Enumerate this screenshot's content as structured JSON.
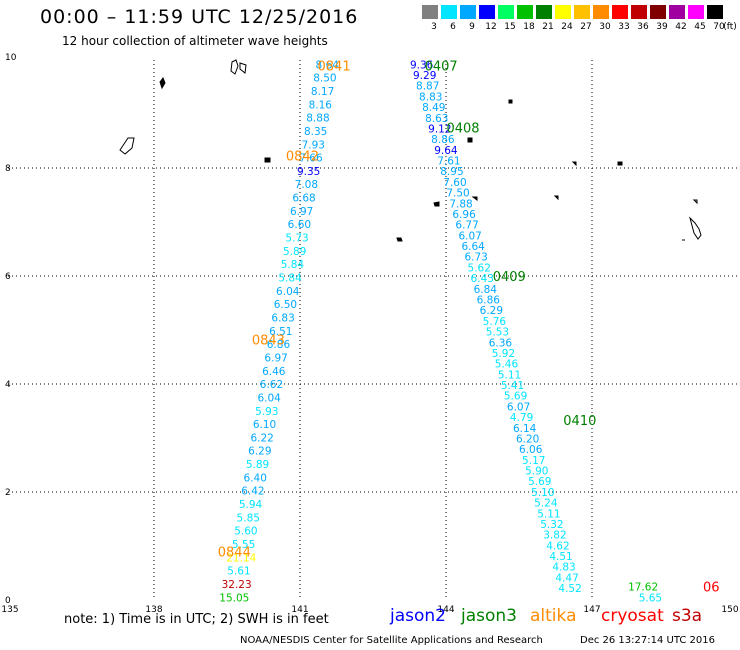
{
  "header": {
    "title": "00:00 – 11:59 UTC 12/25/2016",
    "subtitle": "12 hour collection of altimeter wave heights"
  },
  "scale": {
    "unit": "(ft)",
    "entries": [
      {
        "label": "3",
        "color": "#808080"
      },
      {
        "label": "6",
        "color": "#00e5ff"
      },
      {
        "label": "9",
        "color": "#00a8ff"
      },
      {
        "label": "12",
        "color": "#0000ff"
      },
      {
        "label": "15",
        "color": "#00ff60"
      },
      {
        "label": "18",
        "color": "#00c000"
      },
      {
        "label": "21",
        "color": "#008000"
      },
      {
        "label": "24",
        "color": "#ffff00"
      },
      {
        "label": "27",
        "color": "#ffc000"
      },
      {
        "label": "30",
        "color": "#ff8c00"
      },
      {
        "label": "33",
        "color": "#ff0000"
      },
      {
        "label": "36",
        "color": "#c00000"
      },
      {
        "label": "39",
        "color": "#800000"
      },
      {
        "label": "42",
        "color": "#a000a0"
      },
      {
        "label": "45",
        "color": "#ff00ff"
      },
      {
        "label": "70",
        "color": "#000000"
      }
    ]
  },
  "map": {
    "lon_range": [
      135,
      150
    ],
    "lat_range": [
      0,
      10
    ],
    "grid": true,
    "x_ticks": [
      "135",
      "138",
      "141",
      "144",
      "147",
      "150"
    ],
    "y_ticks": [
      "0",
      "2",
      "4",
      "6",
      "8",
      "10"
    ]
  },
  "passes": [
    {
      "time": "0841",
      "color": "#ff8c00",
      "lon": 141.7,
      "lat": 9.9
    },
    {
      "time": "0842",
      "color": "#ff8c00",
      "lon": 141.05,
      "lat": 8.23
    },
    {
      "time": "0843",
      "color": "#ff8c00",
      "lon": 140.35,
      "lat": 4.82
    },
    {
      "time": "0844",
      "color": "#ff8c00",
      "lon": 139.65,
      "lat": 0.9
    },
    {
      "time": "0407",
      "color": "#008000",
      "lon": 143.9,
      "lat": 9.9
    },
    {
      "time": "0408",
      "color": "#008000",
      "lon": 144.35,
      "lat": 8.75
    },
    {
      "time": "0409",
      "color": "#008000",
      "lon": 145.3,
      "lat": 6.0
    },
    {
      "time": "0410",
      "color": "#008000",
      "lon": 146.75,
      "lat": 3.33
    },
    {
      "time": "06",
      "color": "#ff0000",
      "lon": 149.45,
      "lat": 0.25
    }
  ],
  "tracks": [
    {
      "satellite": "altika",
      "start": [
        141.56,
        9.92
      ],
      "end": [
        139.65,
        0.05
      ],
      "color": "#00a8ff",
      "values": [
        "8.64",
        "8.50",
        "8.17",
        "8.16",
        "8.88",
        "8.35",
        "7.93",
        "7.66",
        "9.35",
        "7.08",
        "6.68",
        "6.97",
        "6.60",
        "5.73",
        "5.89",
        "5.84",
        "5.84",
        "6.04",
        "6.50",
        "6.83",
        "6.51",
        "6.86",
        "6.97",
        "6.46",
        "6.62",
        "6.04",
        "5.93",
        "6.10",
        "6.22",
        "6.29",
        "5.89",
        "6.40",
        "6.42",
        "5.94",
        "5.85",
        "5.60",
        "5.55",
        "21.14",
        "5.61",
        "32.23",
        "15.05"
      ],
      "colors": {
        "9.35": "#0000ff",
        "21.14": "#ffff00",
        "5.94": "#00e5ff",
        "5.85": "#00e5ff",
        "5.60": "#00e5ff",
        "5.55": "#00e5ff",
        "5.61": "#00e5ff",
        "32.23": "#c00000",
        "15.05": "#00c000",
        "5.73": "#00e5ff",
        "5.89": "#00e5ff",
        "5.84": "#00e5ff",
        "5.93": "#00e5ff"
      }
    },
    {
      "satellite": "jason3",
      "start": [
        143.5,
        9.92
      ],
      "end": [
        146.55,
        0.22
      ],
      "color": "#00a8ff",
      "values": [
        "9.36",
        "9.29",
        "8.87",
        "8.83",
        "8.49",
        "8.63",
        "9.12",
        "8.86",
        "9.64",
        "7.61",
        "8.95",
        "7.60",
        "7.50",
        "7.88",
        "6.96",
        "6.77",
        "6.07",
        "6.64",
        "6.73",
        "5.62",
        "6.43",
        "6.84",
        "6.86",
        "6.29",
        "5.76",
        "5.53",
        "6.36",
        "5.92",
        "5.46",
        "5.11",
        "5.41",
        "5.69",
        "6.07",
        "4.79",
        "6.14",
        "6.20",
        "6.06",
        "5.17",
        "5.90",
        "5.69",
        "5.10",
        "5.24",
        "5.11",
        "5.32",
        "3.82",
        "4.62",
        "4.51",
        "4.83",
        "4.47",
        "4.52"
      ],
      "colors": {
        "9.36": "#0000ff",
        "9.29": "#0000ff",
        "9.12": "#0000ff",
        "9.64": "#0000ff",
        "5.62": "#00e5ff",
        "6.43": "#00e5ff",
        "5.76": "#00e5ff",
        "5.53": "#00e5ff",
        "5.92": "#00e5ff",
        "5.46": "#00e5ff",
        "5.11": "#00e5ff",
        "5.41": "#00e5ff",
        "5.69": "#00e5ff",
        "4.79": "#00e5ff",
        "5.17": "#00e5ff",
        "5.90": "#00e5ff",
        "5.10": "#00e5ff",
        "5.24": "#00e5ff",
        "5.32": "#00e5ff",
        "3.82": "#00e5ff",
        "4.62": "#00e5ff",
        "4.51": "#00e5ff",
        "4.83": "#00e5ff",
        "4.47": "#00e5ff",
        "4.52": "#00e5ff"
      }
    }
  ],
  "extra_values": [
    {
      "value": "17.62",
      "color": "#00c000",
      "lon": 148.05,
      "lat": 0.25
    },
    {
      "value": "5.65",
      "color": "#00e5ff",
      "lon": 148.2,
      "lat": 0.05
    }
  ],
  "footer": {
    "note": "note: 1) Time is in UTC; 2) SWH is in feet",
    "satellites": [
      {
        "name": "jason2",
        "color": "#0000ff"
      },
      {
        "name": "jason3",
        "color": "#008000"
      },
      {
        "name": "altika",
        "color": "#ff8c00"
      },
      {
        "name": "cryosat",
        "color": "#ff0000"
      },
      {
        "name": "s3a",
        "color": "#c00000"
      }
    ],
    "credit": "NOAA/NESDIS Center for Satellite Applications and Research",
    "timestamp": "Dec 26 13:27:14 UTC 2016"
  }
}
